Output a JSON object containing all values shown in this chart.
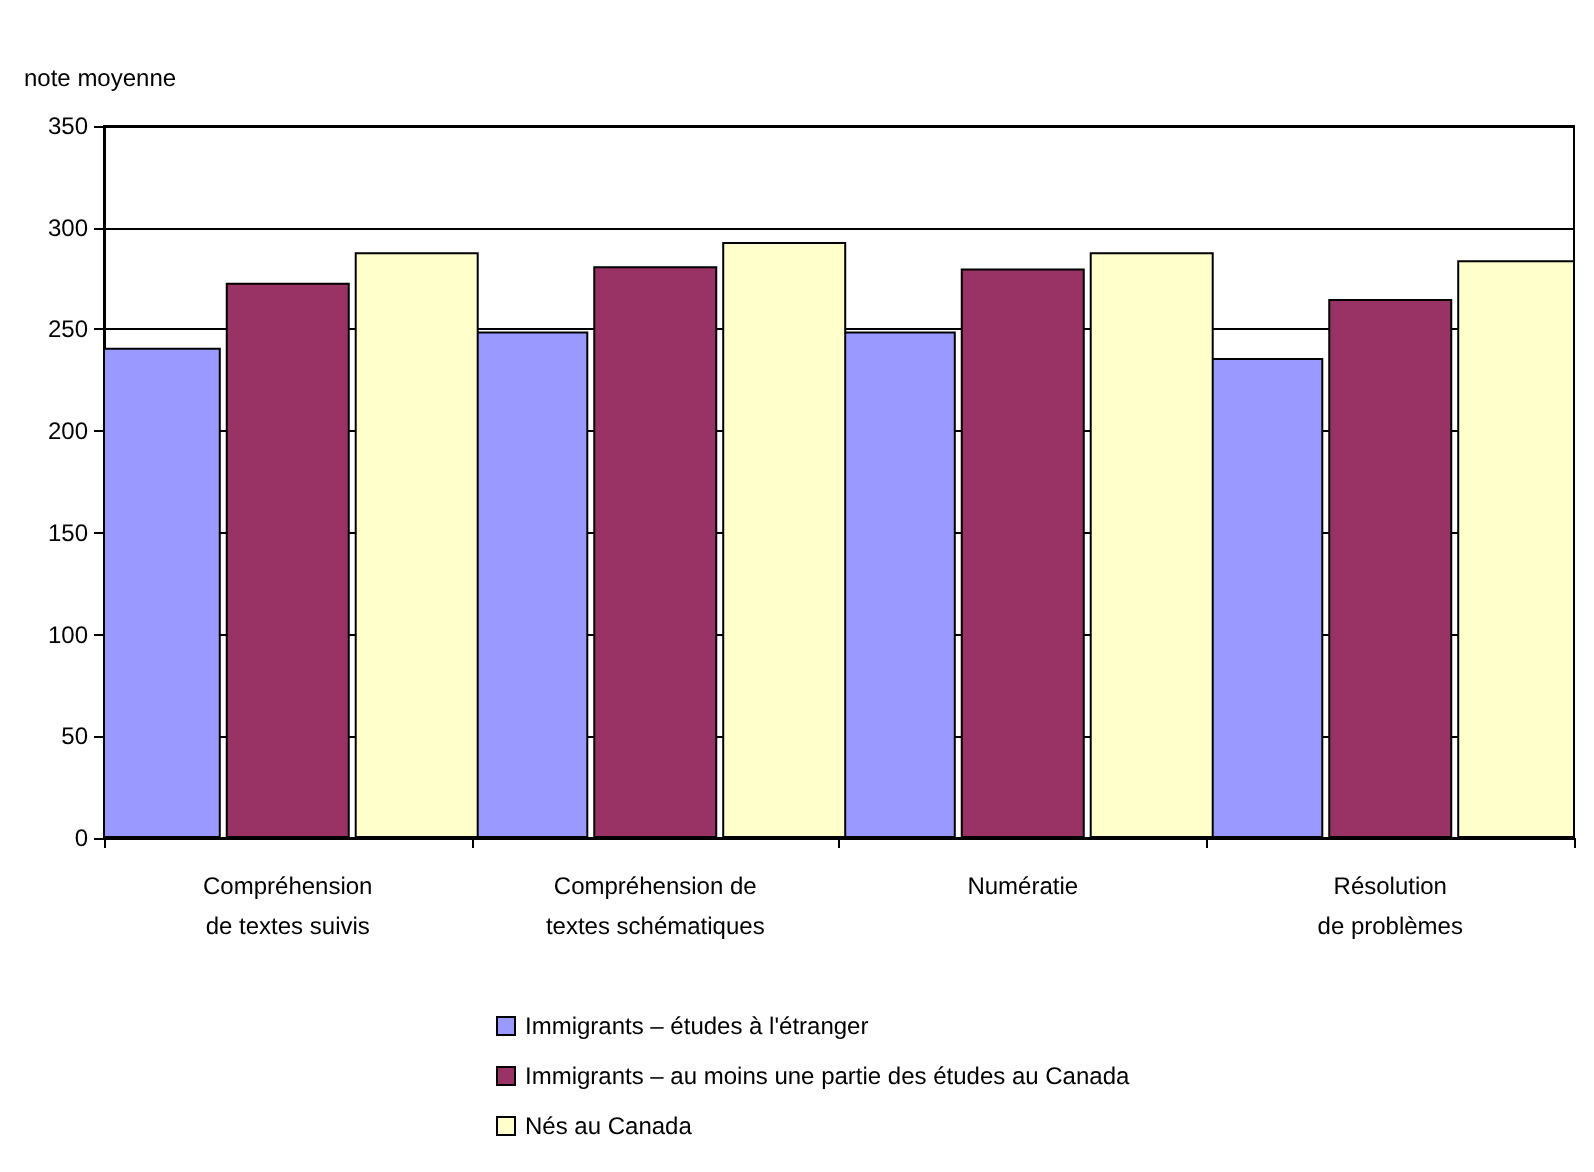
{
  "chart_data": {
    "type": "bar",
    "ylabel": "note moyenne",
    "categories": [
      "Compréhension\nde textes suivis",
      "Compréhension de\ntextes schématiques",
      "Numératie",
      "Résolution\nde problèmes"
    ],
    "series": [
      {
        "name": "Immigrants – études à l'étranger",
        "color": "#9999ff",
        "values": [
          241,
          249,
          249,
          236
        ]
      },
      {
        "name": "Immigrants – au moins une partie des études au Canada",
        "color": "#993366",
        "values": [
          273,
          281,
          280,
          265
        ]
      },
      {
        "name": "Nés au Canada",
        "color": "#ffffcc",
        "values": [
          288,
          293,
          288,
          284
        ]
      }
    ],
    "ylim": [
      0,
      350
    ],
    "yticks": [
      0,
      50,
      100,
      150,
      200,
      250,
      300,
      350
    ],
    "grid": "y",
    "legend": "bottom"
  }
}
